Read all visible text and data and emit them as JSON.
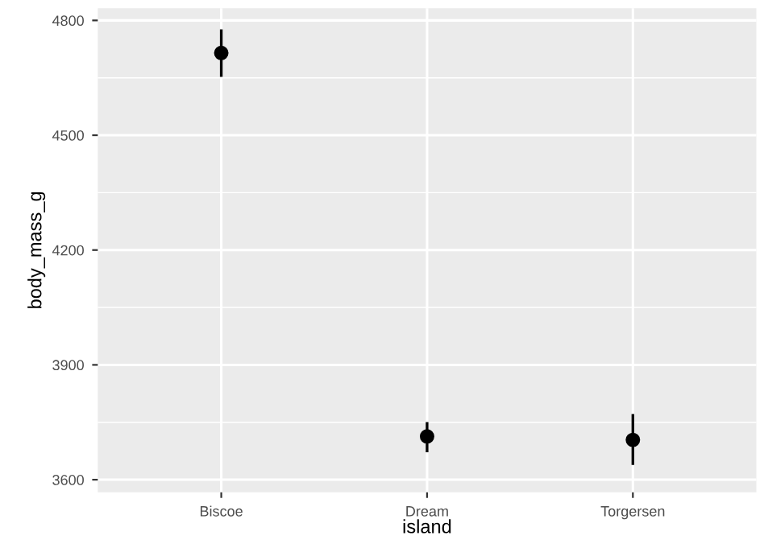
{
  "chart_data": {
    "type": "scatter",
    "xlabel": "island",
    "ylabel": "body_mass_g",
    "categories": [
      "Biscoe",
      "Dream",
      "Torgersen"
    ],
    "values": [
      4715,
      3713,
      3704
    ],
    "errors": [
      [
        4656,
        4773
      ],
      [
        3675,
        3747
      ],
      [
        3642,
        3768
      ]
    ],
    "color": "#000000",
    "marker": "circle",
    "ylim": [
      3567,
      4832
    ],
    "yticks": [
      3600,
      3900,
      4200,
      4500,
      4800
    ],
    "grid": true,
    "legend": false
  }
}
